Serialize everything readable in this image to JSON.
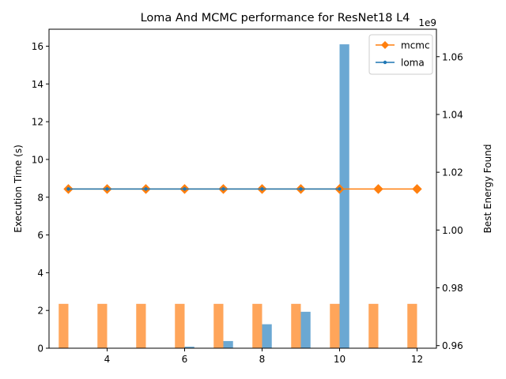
{
  "chart_data": {
    "type": "bar",
    "title": "Loma And MCMC performance for ResNet18 L4",
    "xlabel": "",
    "ylabel": "Execution Time (s)",
    "y2label": "Best Energy Found",
    "y2_offset_text": "1e9",
    "xlim": [
      2.5,
      12.5
    ],
    "ylim": [
      0,
      16.9
    ],
    "y2lim": [
      0.9591,
      1.0695
    ],
    "x_ticks": [
      4,
      6,
      8,
      10,
      12
    ],
    "y_ticks": [
      0,
      2,
      4,
      6,
      8,
      10,
      12,
      14,
      16
    ],
    "y2_ticks": [
      0.96,
      0.98,
      1.0,
      1.02,
      1.04,
      1.06
    ],
    "grid": false,
    "legend_position": "top-right",
    "bar_series": [
      {
        "name": "mcmc",
        "color": "#ffa55a",
        "x": [
          3,
          4,
          5,
          6,
          7,
          8,
          9,
          10,
          11,
          12
        ],
        "values": [
          2.35,
          2.35,
          2.35,
          2.35,
          2.35,
          2.35,
          2.35,
          2.35,
          2.35,
          2.35
        ]
      },
      {
        "name": "loma",
        "color": "#6ba8d3",
        "x": [
          6,
          7,
          8,
          9,
          10
        ],
        "values": [
          0.08,
          0.38,
          1.27,
          1.93,
          16.1
        ]
      }
    ],
    "line_series": [
      {
        "name": "mcmc",
        "color": "#ff7f0e",
        "marker": "diamond",
        "x": [
          3,
          4,
          5,
          6,
          7,
          8,
          9,
          10,
          11,
          12
        ],
        "values": [
          1.0142,
          1.0142,
          1.0142,
          1.0142,
          1.0142,
          1.0142,
          1.0142,
          1.0142,
          1.0142,
          1.0142
        ]
      },
      {
        "name": "loma",
        "color": "#1f77b4",
        "marker": "dot",
        "x": [
          3,
          4,
          5,
          6,
          7,
          8,
          9,
          10
        ],
        "values": [
          1.0142,
          1.0142,
          1.0142,
          1.0142,
          1.0142,
          1.0142,
          1.0142,
          1.0142
        ]
      }
    ],
    "legend": [
      {
        "label": "mcmc",
        "color": "#ff7f0e",
        "marker": "diamond"
      },
      {
        "label": "loma",
        "color": "#1f77b4",
        "marker": "dot"
      }
    ]
  }
}
